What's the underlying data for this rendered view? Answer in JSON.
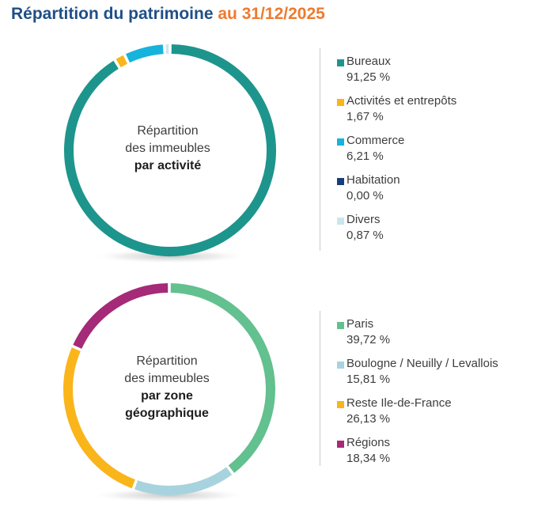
{
  "title": {
    "main": "Répartition du patrimoine",
    "date": "au 31/12/2025"
  },
  "chart_data": [
    {
      "type": "pie",
      "center_label": {
        "line1": "Répartition",
        "line2": "des immeubles",
        "line3": "par activité",
        "line4": ""
      },
      "series": [
        {
          "name": "Bureaux",
          "value_label": "91,25 %",
          "value": 91.25,
          "color": "#1d958d"
        },
        {
          "name": "Activités et entrepôts",
          "value_label": "1,67 %",
          "value": 1.67,
          "color": "#f9b51a"
        },
        {
          "name": "Commerce",
          "value_label": "6,21 %",
          "value": 6.21,
          "color": "#16b3dc"
        },
        {
          "name": "Habitation",
          "value_label": "0,00 %",
          "value": 0.0,
          "color": "#163e7a"
        },
        {
          "name": "Divers",
          "value_label": "0,87 %",
          "value": 0.87,
          "color": "#c9e6ef"
        }
      ]
    },
    {
      "type": "pie",
      "center_label": {
        "line1": "Répartition",
        "line2": "des immeubles",
        "line3": "par zone",
        "line4": "géographique"
      },
      "series": [
        {
          "name": "Paris",
          "value_label": "39,72 %",
          "value": 39.72,
          "color": "#63c08f"
        },
        {
          "name": "Boulogne / Neuilly / Levallois",
          "value_label": "15,81 %",
          "value": 15.81,
          "color": "#a7d3de"
        },
        {
          "name": "Reste Ile-de-France",
          "value_label": "26,13 %",
          "value": 26.13,
          "color": "#f9b51a"
        },
        {
          "name": "Régions",
          "value_label": "18,34 %",
          "value": 18.34,
          "color": "#a52a78"
        }
      ]
    }
  ]
}
